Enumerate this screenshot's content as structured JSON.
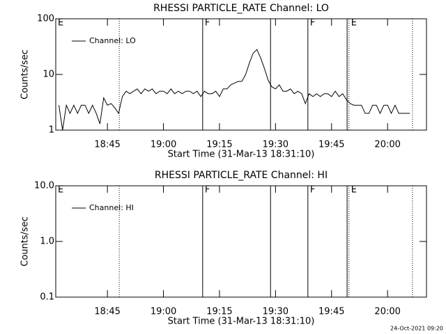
{
  "chart_data": [
    {
      "type": "line",
      "title": "RHESSI PARTICLE_RATE Channel: LO",
      "xlabel": "Start Time (31-Mar-13 18:31:10)",
      "ylabel": "Counts/sec",
      "ylog": true,
      "ylim": [
        1,
        100
      ],
      "yticks": [
        1,
        10,
        100
      ],
      "xlim": [
        "18:31:10",
        "20:10:25"
      ],
      "xticks": [
        "18:45",
        "19:00",
        "19:15",
        "19:30",
        "19:45",
        "20:00"
      ],
      "legend": "upper left",
      "x": [
        "18:32",
        "18:33",
        "18:34",
        "18:35",
        "18:36",
        "18:37",
        "18:38",
        "18:39",
        "18:40",
        "18:41",
        "18:42",
        "18:43",
        "18:44",
        "18:45",
        "18:46",
        "18:47",
        "18:48",
        "18:49",
        "18:50",
        "18:51",
        "18:52",
        "18:53",
        "18:54",
        "18:55",
        "18:56",
        "18:57",
        "18:58",
        "18:59",
        "19:00",
        "19:01",
        "19:02",
        "19:03",
        "19:04",
        "19:05",
        "19:06",
        "19:07",
        "19:08",
        "19:09",
        "19:10",
        "19:11",
        "19:12",
        "19:13",
        "19:14",
        "19:15",
        "19:16",
        "19:17",
        "19:18",
        "19:19",
        "19:20",
        "19:21",
        "19:22",
        "19:23",
        "19:24",
        "19:25",
        "19:26",
        "19:27",
        "19:28",
        "19:29",
        "19:30",
        "19:31",
        "19:32",
        "19:33",
        "19:34",
        "19:35",
        "19:36",
        "19:37",
        "19:38",
        "19:39",
        "19:40",
        "19:41",
        "19:42",
        "19:43",
        "19:44",
        "19:45",
        "19:46",
        "19:47",
        "19:48",
        "19:49",
        "19:50",
        "19:51",
        "19:52",
        "19:53",
        "19:54",
        "19:55",
        "19:56",
        "19:57",
        "19:58",
        "19:59",
        "20:00",
        "20:01",
        "20:02",
        "20:03",
        "20:04",
        "20:05",
        "20:06"
      ],
      "series": [
        {
          "name": "Channel: LO",
          "color": "#000000",
          "values": [
            2.8,
            1.0,
            2.8,
            2.0,
            2.8,
            2.0,
            2.8,
            2.8,
            2.0,
            2.8,
            2.0,
            1.3,
            3.8,
            2.8,
            3.0,
            2.5,
            2.0,
            4.0,
            5.0,
            4.5,
            5.0,
            5.5,
            4.5,
            5.5,
            5.0,
            5.5,
            4.5,
            5.0,
            5.0,
            4.5,
            5.5,
            4.5,
            5.0,
            4.5,
            5.0,
            5.0,
            4.5,
            5.0,
            4.0,
            5.0,
            4.5,
            4.5,
            5.0,
            4.0,
            5.5,
            5.5,
            6.5,
            7.0,
            7.5,
            7.5,
            10,
            16,
            24,
            28,
            20,
            13,
            8,
            6,
            5.5,
            6.5,
            5,
            5,
            5.5,
            4.5,
            5,
            4.5,
            3.0,
            4.5,
            4.0,
            4.5,
            4.0,
            4.5,
            4.5,
            4.0,
            5.0,
            4.0,
            4.5,
            3.5,
            3.0,
            2.8,
            2.8,
            2.8,
            2.0,
            2.0,
            2.8,
            2.8,
            2.0,
            2.8,
            2.8,
            2.0,
            2.8,
            2.0,
            2.0,
            2.0,
            2.0
          ]
        }
      ],
      "events": [
        {
          "time": "18:31:10",
          "label": "E"
        },
        {
          "time": "18:48:10",
          "style": "dotted"
        },
        {
          "time": "19:10:30",
          "style": "solid",
          "label": "F"
        },
        {
          "time": "19:28:40",
          "style": "solid"
        },
        {
          "time": "19:38:40",
          "style": "solid",
          "label": "F"
        },
        {
          "time": "19:49:10",
          "style": "solid"
        },
        {
          "time": "19:49:40",
          "style": "dotted",
          "label": "E"
        },
        {
          "time": "20:06:40",
          "style": "dotted"
        }
      ]
    },
    {
      "type": "line",
      "title": "RHESSI PARTICLE_RATE Channel: HI",
      "xlabel": "Start Time (31-Mar-13 18:31:10)",
      "ylabel": "Counts/sec",
      "ylog": true,
      "ylim": [
        0.1,
        10
      ],
      "yticks": [
        0.1,
        {
          "value": 1,
          "label": "1.0"
        },
        {
          "value": 10,
          "label": "10.0"
        }
      ],
      "xlim": [
        "18:31:10",
        "20:10:25"
      ],
      "xticks": [
        "18:45",
        "19:00",
        "19:15",
        "19:30",
        "19:45",
        "20:00"
      ],
      "legend": "upper left",
      "x": [],
      "series": [
        {
          "name": "Channel: HI",
          "color": "#000000",
          "values": []
        }
      ],
      "events": [
        {
          "time": "18:31:10",
          "label": "E"
        },
        {
          "time": "18:48:10",
          "style": "dotted"
        },
        {
          "time": "19:10:30",
          "style": "solid",
          "label": "F"
        },
        {
          "time": "19:28:40",
          "style": "solid"
        },
        {
          "time": "19:38:40",
          "style": "solid",
          "label": "F"
        },
        {
          "time": "19:49:10",
          "style": "solid"
        },
        {
          "time": "19:49:40",
          "style": "dotted",
          "label": "E"
        },
        {
          "time": "20:06:40",
          "style": "dotted"
        }
      ]
    }
  ],
  "footer": "24-Oct-2021 09:20"
}
